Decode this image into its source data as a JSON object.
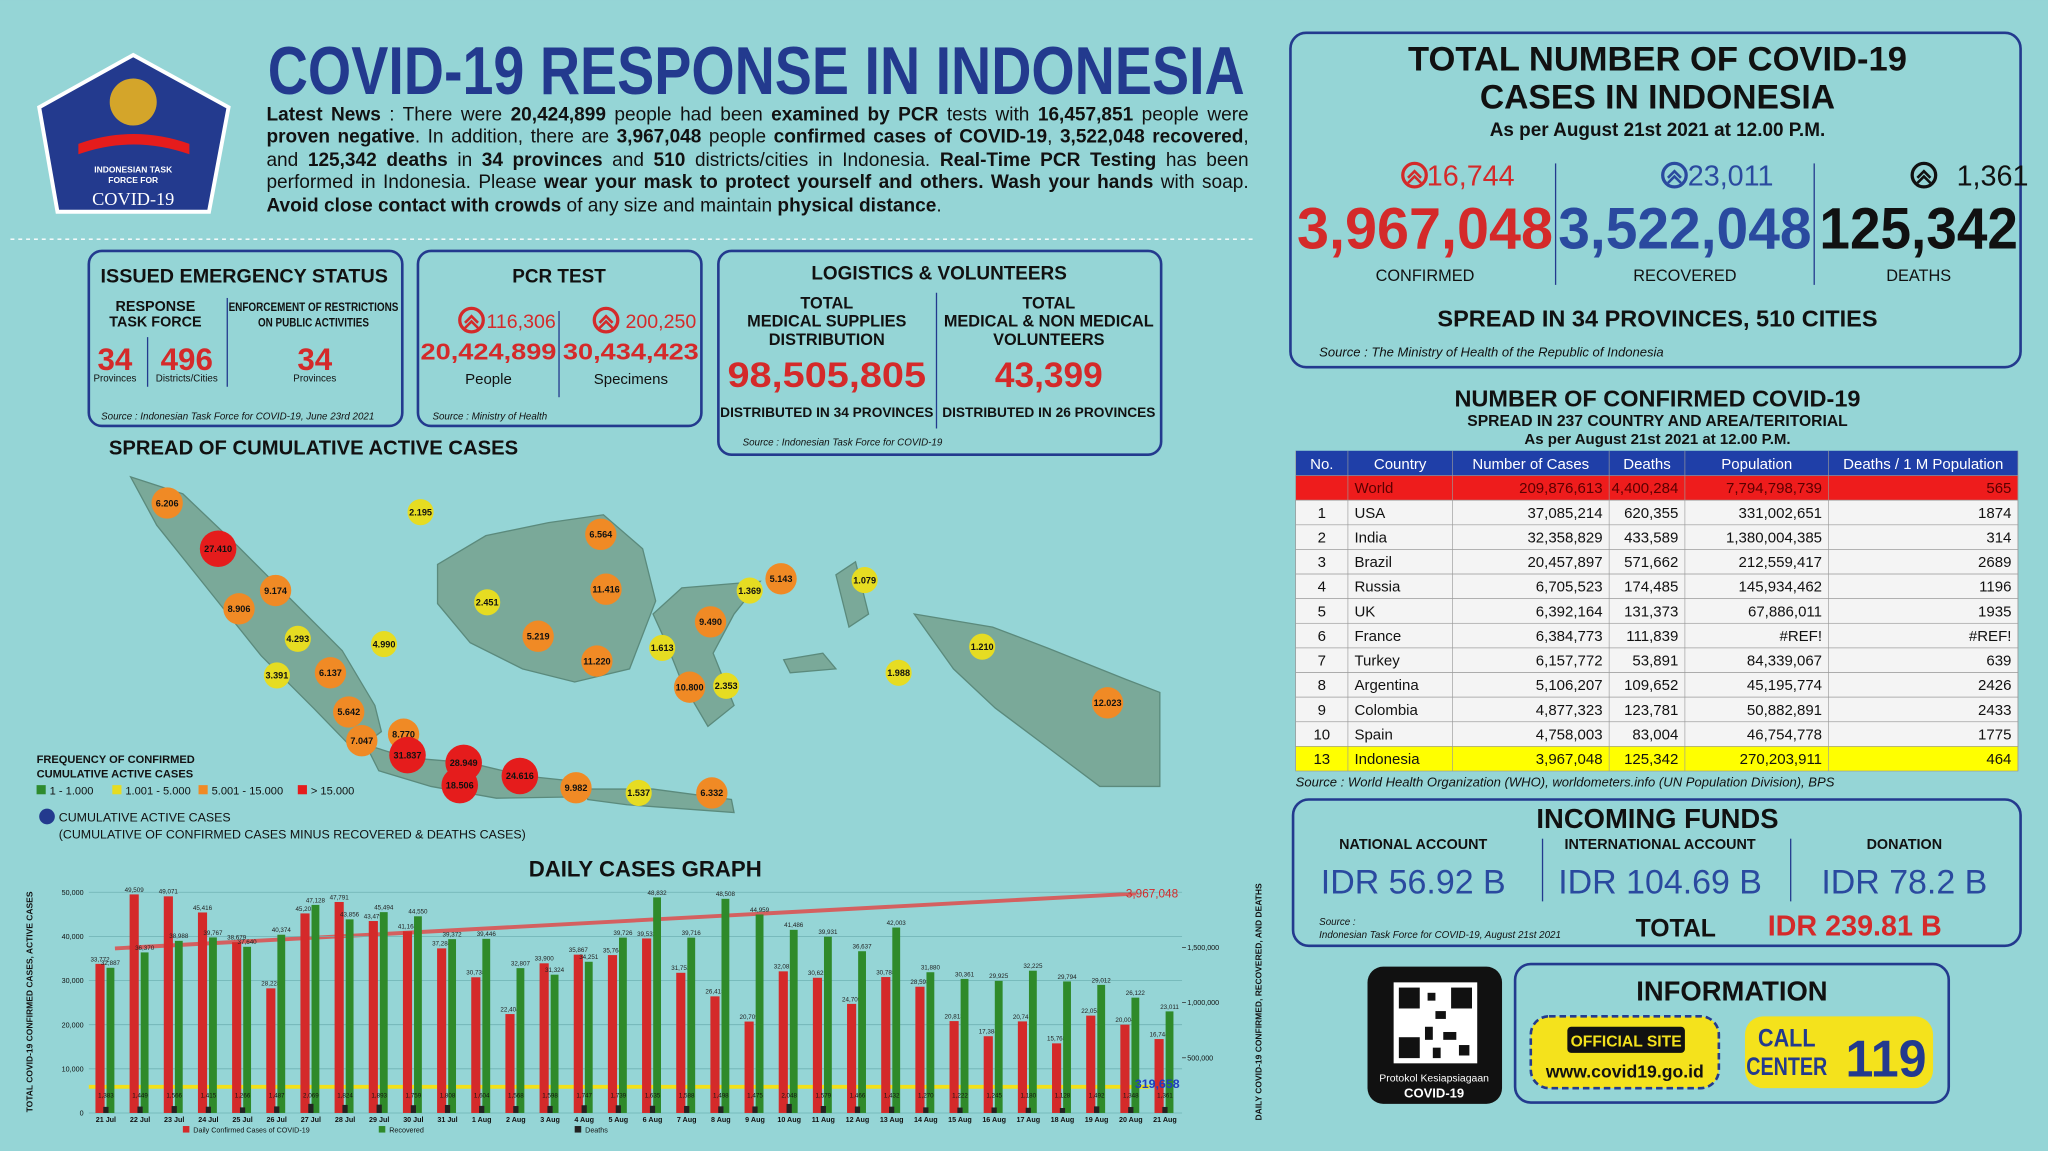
{
  "header": {
    "title": "COVID-19 RESPONSE IN INDONESIA",
    "logo_lines": [
      "INDONESIAN TASK",
      "FORCE FOR"
    ],
    "logo_name": "COVID-19"
  },
  "news": [
    {
      "text": "Latest News",
      "bold": true
    },
    {
      "text": " : There were "
    },
    {
      "text": "20,424,899",
      "bold": true
    },
    {
      "text": " people had been "
    },
    {
      "text": "examined by PCR",
      "bold": true
    },
    {
      "text": " tests with "
    },
    {
      "text": "16,457,851",
      "bold": true
    },
    {
      "text": " people were "
    },
    {
      "text": "proven negative",
      "bold": true
    },
    {
      "text": ". In addition, there are "
    },
    {
      "text": "3,967,048",
      "bold": true
    },
    {
      "text": " people "
    },
    {
      "text": "confirmed cases of COVID-19",
      "bold": true
    },
    {
      "text": ", "
    },
    {
      "text": "3,522,048 recovered",
      "bold": true
    },
    {
      "text": ", and "
    },
    {
      "text": "125,342 deaths",
      "bold": true
    },
    {
      "text": " in "
    },
    {
      "text": "34 provinces",
      "bold": true
    },
    {
      "text": " and "
    },
    {
      "text": "510",
      "bold": true
    },
    {
      "text": " districts/cities in Indonesia. "
    },
    {
      "text": "Real-Time PCR Testing",
      "bold": true
    },
    {
      "text": " has been performed in Indonesia. Please "
    },
    {
      "text": "wear your mask to protect yourself and others. Wash your hands",
      "bold": true
    },
    {
      "text": " with soap. "
    },
    {
      "text": "Avoid close contact with crowds",
      "bold": true
    },
    {
      "text": " of any size and maintain "
    },
    {
      "text": "physical distance",
      "bold": true
    },
    {
      "text": "."
    }
  ],
  "emergency": {
    "title": "ISSUED EMERGENCY STATUS",
    "col1_lines": [
      "RESPONSE",
      "TASK FORCE"
    ],
    "col2_lines": [
      "ENFORCEMENT OF RESTRICTIONS",
      "ON PUBLIC ACTIVITIES"
    ],
    "provinces": "34",
    "provinces_unit": "Provinces",
    "districts": "496",
    "districts_unit": "Districts/Cities",
    "restrictions": "34",
    "restrictions_unit": "Provinces",
    "source": "Source : Indonesian Task Force for COVID-19, June 23rd 2021"
  },
  "pcr": {
    "title": "PCR TEST",
    "people_increase": "116,306",
    "people": "20,424,899",
    "people_label": "People",
    "specimens_increase": "200,250",
    "specimens": "30,434,423",
    "specimens_label": "Specimens",
    "source": "Source : Ministry of Health"
  },
  "logistics": {
    "title": "LOGISTICS & VOLUNTEERS",
    "col1_lines": [
      "TOTAL",
      "MEDICAL SUPPLIES",
      "DISTRIBUTION"
    ],
    "col2_lines": [
      "TOTAL",
      "MEDICAL & NON MEDICAL",
      "VOLUNTEERS"
    ],
    "supplies": "98,505,805",
    "volunteers": "43,399",
    "supplies_note": "DISTRIBUTED IN 34 PROVINCES",
    "volunteers_note": "DISTRIBUTED IN 26 PROVINCES",
    "source": "Source : Indonesian Task Force for COVID-19"
  },
  "map": {
    "title": "SPREAD OF CUMULATIVE ACTIVE CASES",
    "legend_title": [
      "FREQUENCY OF CONFIRMED",
      "CUMULATIVE ACTIVE CASES"
    ],
    "legend_items": [
      {
        "label": "1 - 1.000",
        "color": "#2e8b2e"
      },
      {
        "label": "1.001 - 5.000",
        "color": "#e6dc22"
      },
      {
        "label": "5.001 - 15.000",
        "color": "#f08a25"
      },
      {
        "label": "> 15.000",
        "color": "#e51c1c"
      }
    ],
    "active_label": "CUMULATIVE ACTIVE CASES",
    "active_note": "(CUMULATIVE OF CONFIRMED CASES MINUS RECOVERED & DEATHS CASES)",
    "bubbles": [
      {
        "label": "6.206",
        "color": "#f08a25"
      },
      {
        "label": "2.195",
        "color": "#e6dc22"
      },
      {
        "label": "27.410",
        "color": "#e51c1c"
      },
      {
        "label": "9.174",
        "color": "#f08a25"
      },
      {
        "label": "8.906",
        "color": "#f08a25"
      },
      {
        "label": "4.293",
        "color": "#e6dc22"
      },
      {
        "label": "4.990",
        "color": "#e6dc22"
      },
      {
        "label": "3.391",
        "color": "#e6dc22"
      },
      {
        "label": "6.137",
        "color": "#f08a25"
      },
      {
        "label": "5.642",
        "color": "#f08a25"
      },
      {
        "label": "7.047",
        "color": "#f08a25"
      },
      {
        "label": "8.770",
        "color": "#f08a25"
      },
      {
        "label": "31.837",
        "color": "#e51c1c"
      },
      {
        "label": "28.949",
        "color": "#e51c1c"
      },
      {
        "label": "18.506",
        "color": "#e51c1c"
      },
      {
        "label": "24.616",
        "color": "#e51c1c"
      },
      {
        "label": "9.982",
        "color": "#f08a25"
      },
      {
        "label": "1.537",
        "color": "#e6dc22"
      },
      {
        "label": "6.332",
        "color": "#f08a25"
      },
      {
        "label": "6.564",
        "color": "#f08a25"
      },
      {
        "label": "2.451",
        "color": "#e6dc22"
      },
      {
        "label": "11.416",
        "color": "#f08a25"
      },
      {
        "label": "5.219",
        "color": "#f08a25"
      },
      {
        "label": "11.220",
        "color": "#f08a25"
      },
      {
        "label": "1.613",
        "color": "#e6dc22"
      },
      {
        "label": "9.490",
        "color": "#f08a25"
      },
      {
        "label": "10.800",
        "color": "#f08a25"
      },
      {
        "label": "2.353",
        "color": "#e6dc22"
      },
      {
        "label": "1.369",
        "color": "#e6dc22"
      },
      {
        "label": "5.143",
        "color": "#f08a25"
      },
      {
        "label": "1.079",
        "color": "#e6dc22"
      },
      {
        "label": "1.210",
        "color": "#e6dc22"
      },
      {
        "label": "1.988",
        "color": "#e6dc22"
      },
      {
        "label": "12.023",
        "color": "#f08a25"
      }
    ]
  },
  "daily_graph": {
    "type": "bar",
    "title": "DAILY CASES GRAPH",
    "y_label": "TOTAL COVID-19 CONFIRMED CASES, ACTIVE CASES",
    "y2_label": "DAILY COVID-19 CONFIRMED, RECOVERED, AND DEATHS",
    "categories": [
      "21 Jul",
      "22 Jul",
      "23 Jul",
      "24 Jul",
      "25 Jul",
      "26 Jul",
      "27 Jul",
      "28 Jul",
      "29 Jul",
      "30 Jul",
      "31 Jul",
      "1 Aug",
      "2 Aug",
      "3 Aug",
      "4 Aug",
      "5 Aug",
      "6 Aug",
      "7 Aug",
      "8 Aug",
      "9 Aug",
      "10 Aug",
      "11 Aug",
      "12 Aug",
      "13 Aug",
      "14 Aug",
      "15 Aug",
      "16 Aug",
      "17 Aug",
      "18 Aug",
      "19 Aug",
      "20 Aug",
      "21 Aug"
    ],
    "ylim": [
      0,
      50000
    ],
    "yticks": [
      0,
      {
        "value": 10000,
        "label": "10,000"
      },
      {
        "value": 20000,
        "label": "20,000"
      },
      {
        "value": 30000,
        "label": "30,000"
      },
      {
        "value": 40000,
        "label": "40,000"
      },
      {
        "value": 50000,
        "label": "50,000"
      }
    ],
    "y2lim": [
      0,
      2000000
    ],
    "y2ticks": [
      {
        "value": 500000,
        "label": "500,000"
      },
      {
        "value": 1000000,
        "label": "1,000,000"
      },
      {
        "value": 1500000,
        "label": "1,500,000"
      }
    ],
    "series": [
      {
        "name": "Daily Confirmed Cases of COVID-19",
        "color": "#d42a2a",
        "values": [
          33772,
          49509,
          49071,
          45416,
          38679,
          28228,
          45203,
          47791,
          43479,
          41168,
          37284,
          30738,
          22404,
          33900,
          35867,
          35764,
          39532,
          31753,
          26415,
          20709,
          32081,
          30625,
          24709,
          30788,
          28598,
          20813,
          17384,
          20741,
          15768,
          22053,
          20004,
          16744
        ],
        "value_labels": [
          "33,772",
          "49,509",
          "49,071",
          "45,416",
          "38,679",
          "28,228",
          "45,203",
          "47,791",
          "43,479",
          "41,168",
          "37,284",
          "30,738",
          "22,404",
          "33,900",
          "35,867",
          "35,764",
          "39,532",
          "31,753",
          "26,415",
          "20,709",
          "32,081",
          "30,625",
          "24,709",
          "30,788",
          "28,598",
          "20,813",
          "17,384",
          "20,741",
          "15,768",
          "22,053",
          "20,004",
          "16,744"
        ]
      },
      {
        "name": "Recovered",
        "color": "#2f8a2a",
        "values": [
          32887,
          36370,
          38988,
          39767,
          37640,
          40374,
          47128,
          43856,
          45494,
          44550,
          39372,
          39446,
          32807,
          31324,
          34251,
          39726,
          48832,
          39716,
          48508,
          44959,
          41486,
          39931,
          36637,
          42003,
          31880,
          30361,
          29925,
          32225,
          29794,
          29012,
          26122,
          23011
        ],
        "value_labels": [
          "32,887",
          "36,370",
          "38,988",
          "39,767",
          "37,640",
          "40,374",
          "47,128",
          "43,856",
          "45,494",
          "44,550",
          "39,372",
          "39,446",
          "32,807",
          "31,324",
          "34,251",
          "39,726",
          "48,832",
          "39,716",
          "48,508",
          "44,959",
          "41,486",
          "39,931",
          "36,637",
          "42,003",
          "31,880",
          "30,361",
          "29,925",
          "32,225",
          "29,794",
          "29,012",
          "26,122",
          "23,011"
        ]
      },
      {
        "name": "Deaths",
        "color": "#222222",
        "values": [
          1383,
          1449,
          1566,
          1415,
          1266,
          1487,
          2069,
          1824,
          1893,
          1759,
          1808,
          1604,
          1568,
          1598,
          1747,
          1739,
          1635,
          1588,
          1498,
          1475,
          2048,
          1579,
          1466,
          1432,
          1270,
          1222,
          1245,
          1180,
          1128,
          1492,
          1348,
          1361
        ],
        "value_labels": [
          "1,383",
          "1,449",
          "1,566",
          "1,415",
          "1,266",
          "1,487",
          "2,069",
          "1,824",
          "1,893",
          "1,759",
          "1,808",
          "1,604",
          "1,568",
          "1,598",
          "1,747",
          "1,739",
          "1,635",
          "1,588",
          "1,498",
          "1,475",
          "2,048",
          "1,579",
          "1,466",
          "1,432",
          "1,270",
          "1,222",
          "1,245",
          "1,180",
          "1,128",
          "1,492",
          "1,348",
          "1,361"
        ]
      }
    ],
    "total_label": "3,967,048",
    "active_label": "319,658"
  },
  "total": {
    "title_lines": [
      "TOTAL NUMBER OF COVID-19",
      "CASES IN INDONESIA"
    ],
    "subtitle": "As per August 21st 2021 at 12.00 P.M.",
    "columns": [
      {
        "increase": "16,744",
        "value": "3,967,048",
        "label": "CONFIRMED",
        "color": "#d42a2a"
      },
      {
        "increase": "23,011",
        "value": "3,522,048",
        "label": "RECOVERED",
        "color": "#2a4a9f"
      },
      {
        "increase": "1,361",
        "value": "125,342",
        "label": "DEATHS",
        "color": "#111111"
      }
    ],
    "spread": "SPREAD IN 34 PROVINCES, 510 CITIES",
    "source": "Source : The Ministry of Health of the Republic of Indonesia"
  },
  "world": {
    "title": "NUMBER OF CONFIRMED COVID-19",
    "subtitle": "SPREAD IN 237 COUNTRY AND AREA/TERITORIAL",
    "date": "As per August 21st 2021 at 12.00 P.M.",
    "headers": [
      "No.",
      "Country",
      "Number of Cases",
      "Deaths",
      "Population",
      "Deaths / 1 M Population"
    ],
    "rows": [
      {
        "cells": [
          null,
          "World",
          "209,876,613",
          "4,400,284",
          "7,794,798,739",
          "565"
        ],
        "fill": "#ee1c1c"
      },
      {
        "cells": [
          "1",
          "USA",
          "37,085,214",
          "620,355",
          "331,002,651",
          "1874"
        ]
      },
      {
        "cells": [
          "2",
          "India",
          "32,358,829",
          "433,589",
          "1,380,004,385",
          "314"
        ]
      },
      {
        "cells": [
          "3",
          "Brazil",
          "20,457,897",
          "571,662",
          "212,559,417",
          "2689"
        ]
      },
      {
        "cells": [
          "4",
          "Russia",
          "6,705,523",
          "174,485",
          "145,934,462",
          "1196"
        ]
      },
      {
        "cells": [
          "5",
          "UK",
          "6,392,164",
          "131,373",
          "67,886,011",
          "1935"
        ]
      },
      {
        "cells": [
          "6",
          "France",
          "6,384,773",
          "111,839",
          "#REF!",
          "#REF!"
        ]
      },
      {
        "cells": [
          "7",
          "Turkey",
          "6,157,772",
          "53,891",
          "84,339,067",
          "639"
        ]
      },
      {
        "cells": [
          "8",
          "Argentina",
          "5,106,207",
          "109,652",
          "45,195,774",
          "2426"
        ]
      },
      {
        "cells": [
          "9",
          "Colombia",
          "4,877,323",
          "123,781",
          "50,882,891",
          "2433"
        ]
      },
      {
        "cells": [
          "10",
          "Spain",
          "4,758,003",
          "83,004",
          "46,754,778",
          "1775"
        ]
      },
      {
        "cells": [
          "13",
          "Indonesia",
          "3,967,048",
          "125,342",
          "270,203,911",
          "464"
        ],
        "fill": "#ffff00"
      }
    ],
    "source": "Source : World Health Organization (WHO), worldometers.info (UN Population Division), BPS"
  },
  "funds": {
    "title": "INCOMING FUNDS",
    "accounts": [
      {
        "label": "NATIONAL ACCOUNT",
        "value": "IDR 56.92 B"
      },
      {
        "label": "INTERNATIONAL ACCOUNT",
        "value": "IDR 104.69 B"
      },
      {
        "label": "DONATION",
        "value": "IDR 78.2 B"
      }
    ],
    "source_lines": [
      "Source :",
      "Indonesian Task Force for COVID-19, August 21st 2021"
    ],
    "total_label": "TOTAL",
    "total_value": "IDR 239.81 B"
  },
  "info": {
    "qr_lines": [
      "Protokol Kesiapsiagaan",
      "COVID-19"
    ],
    "title": "INFORMATION",
    "site_badge": "OFFICIAL SITE",
    "site_url": "www.covid19.go.id",
    "call_lines": [
      "CALL",
      "CENTER"
    ],
    "call_number": "119"
  }
}
